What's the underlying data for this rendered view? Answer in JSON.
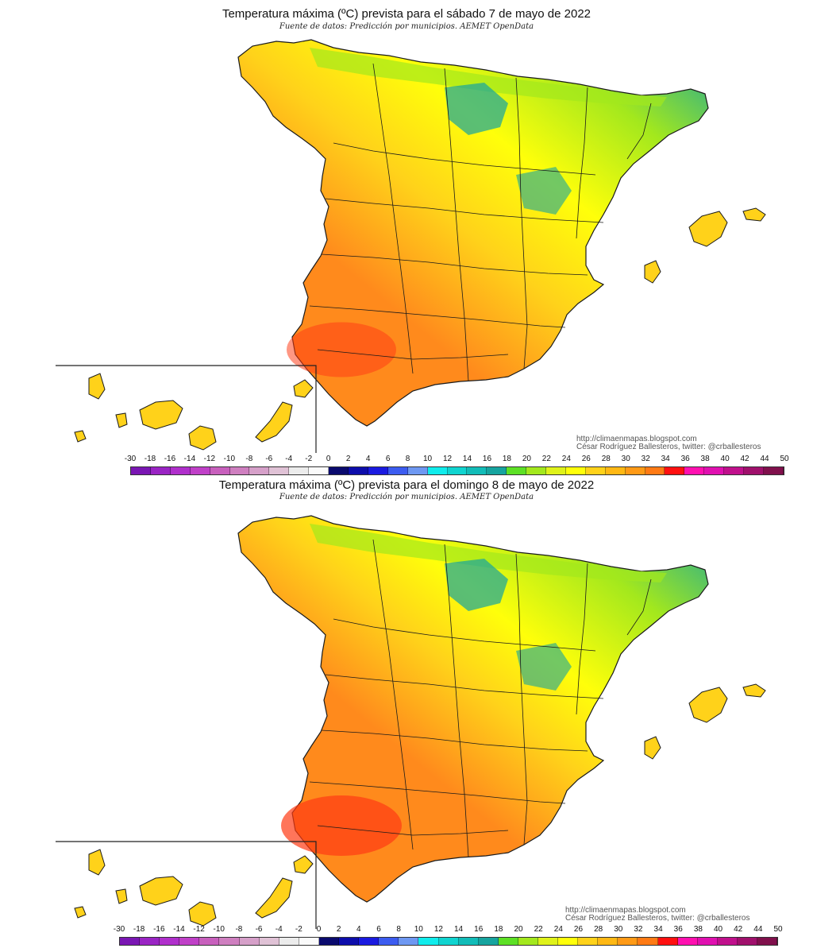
{
  "panels": [
    {
      "title": "Temperatura máxima (ºC) prevista para el sábado 7 de mayo de 2022",
      "source": "Fuente de datos: Predicción por municipios. AEMET OpenData",
      "credit_url": "http://climaenmapas.blogspot.com",
      "credit_author": "César Rodríguez Ballesteros, twitter: @crballesteros",
      "warm_level": 0.45
    },
    {
      "title": "Temperatura máxima (ºC) prevista para el domingo 8 de mayo de 2022",
      "source": "Fuente de datos: Predicción por municipios. AEMET OpenData",
      "credit_url": "http://climaenmapas.blogspot.com",
      "credit_author": "César Rodríguez Ballesteros, twitter: @crballesteros",
      "warm_level": 0.8
    }
  ],
  "legend": {
    "ticks": [
      "-30",
      "-18",
      "-16",
      "-14",
      "-12",
      "-10",
      "-8",
      "-6",
      "-4",
      "-2",
      "0",
      "2",
      "4",
      "6",
      "8",
      "10",
      "12",
      "14",
      "16",
      "18",
      "20",
      "22",
      "24",
      "26",
      "28",
      "30",
      "32",
      "34",
      "36",
      "38",
      "40",
      "42",
      "44",
      "50"
    ],
    "colors": [
      "#7a16b3",
      "#9a24c4",
      "#b02fcc",
      "#c040c8",
      "#c860bd",
      "#cf7fc0",
      "#d6a0c9",
      "#e0c2d6",
      "#ececec",
      "#fafafa",
      "#0a0a6e",
      "#0d0dab",
      "#1a1ae0",
      "#3c5cf0",
      "#6e98f2",
      "#10ecec",
      "#10d4d0",
      "#12bcb8",
      "#16a49f",
      "#5de025",
      "#a3e81d",
      "#dff21a",
      "#ffff0a",
      "#ffd21a",
      "#ffb814",
      "#ff9a16",
      "#ff7a14",
      "#ff1010",
      "#ff10b0",
      "#e010b0",
      "#c0108c",
      "#a0106c",
      "#80104c"
    ]
  },
  "colors": {
    "warm": "#ff8a1c",
    "hot": "#ff3a14",
    "mild": "#ffd21a",
    "cool": "#ffff0a",
    "fresh": "#a3e81d",
    "cold": "#16a49f",
    "border": "#1a1a1a"
  }
}
